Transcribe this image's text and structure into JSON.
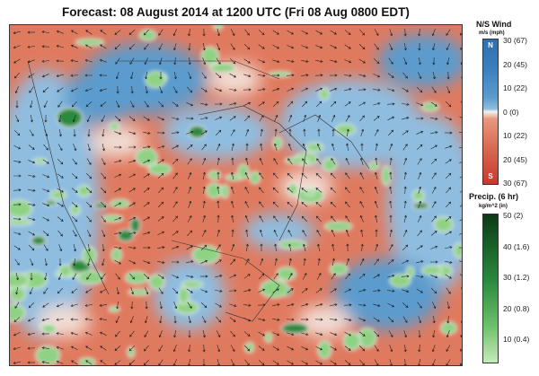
{
  "title": "Forecast: 08 August 2014 at 1200 UTC (Fri 08 Aug 0800 EDT)",
  "wind_legend": {
    "title": "N/S Wind",
    "unit": "m/s (mph)",
    "north_label": "N",
    "south_label": "S",
    "ticks": [
      "30 (67)",
      "20 (45)",
      "10 (22)",
      "0 (0)",
      "10 (22)",
      "20 (45)",
      "30 (67)"
    ],
    "colors": {
      "north": "#2f6fae",
      "zero": "#f4f1ee",
      "south": "#c8382b"
    }
  },
  "precip_legend": {
    "title": "Precip. (6 hr)",
    "unit": "kg/m^2 (in)",
    "ticks": [
      "50 (2)",
      "40 (1.6)",
      "30 (1.2)",
      "20 (0.8)",
      "10 (0.4)"
    ],
    "colors": {
      "high": "#0b3a16",
      "low": "#c7eab9"
    }
  }
}
